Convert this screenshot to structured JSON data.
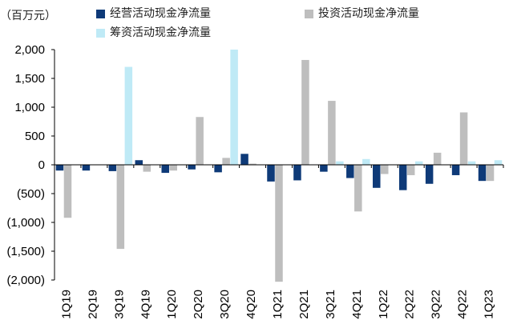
{
  "chart_data": {
    "type": "bar",
    "unit_label": "（百万元）",
    "categories": [
      "1Q19",
      "2Q19",
      "3Q19",
      "4Q19",
      "1Q20",
      "2Q20",
      "3Q20",
      "4Q20",
      "1Q21",
      "2Q21",
      "3Q21",
      "4Q21",
      "1Q22",
      "2Q22",
      "3Q22",
      "4Q22",
      "1Q23"
    ],
    "series": [
      {
        "name": "经营活动现金净流量",
        "color": "#0e3a78",
        "values": [
          -100,
          -100,
          -110,
          80,
          -140,
          -80,
          -130,
          190,
          -290,
          -270,
          -120,
          -230,
          -400,
          -440,
          -330,
          -180,
          -280
        ]
      },
      {
        "name": "投资活动现金净流量",
        "color": "#bebebe",
        "values": [
          -920,
          0,
          -1460,
          -120,
          -100,
          830,
          120,
          20,
          -2030,
          1820,
          1110,
          -810,
          -160,
          -180,
          210,
          910,
          -280
        ]
      },
      {
        "name": "筹资活动现金净流量",
        "color": "#bfeaf6",
        "values": [
          0,
          0,
          1700,
          0,
          0,
          0,
          2000,
          0,
          0,
          0,
          60,
          100,
          0,
          60,
          0,
          60,
          80
        ]
      }
    ],
    "ylim": [
      -2000,
      2000
    ],
    "yticks": [
      2000,
      1500,
      1000,
      500,
      0,
      -500,
      -1000,
      -1500,
      -2000
    ],
    "ytick_labels": [
      "2,000",
      "1,500",
      "1,000",
      "500",
      "0",
      "(500)",
      "(1,000)",
      "(1,500)",
      "(2,000)"
    ],
    "grid": false,
    "legend_position": "top"
  }
}
